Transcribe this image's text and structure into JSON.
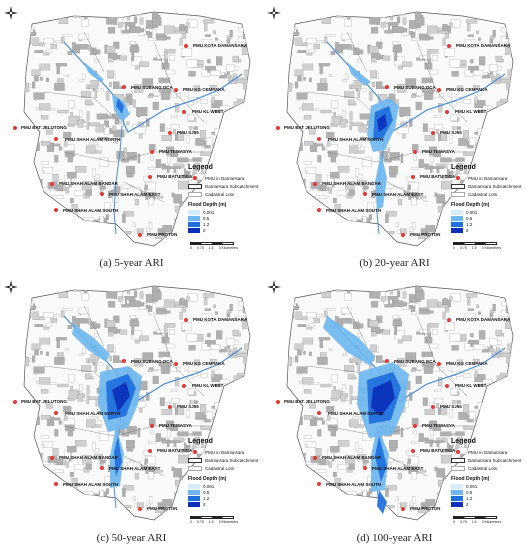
{
  "panels": [
    {
      "caption": "(a) 5-year ARI",
      "flood_extent": "small",
      "legend": {
        "title": "Legend",
        "items": [
          "PMU in Damansara",
          "Damansara Subcatchment",
          "Cadastral Lots"
        ],
        "flood_title": "Flood Depth (m)",
        "flood_classes": [
          "0.001",
          "0.5",
          "1.2",
          "2"
        ]
      },
      "scale": {
        "ticks": [
          "0",
          "0.75",
          "1.5",
          "3 Kilometers"
        ]
      }
    },
    {
      "caption": "(b) 20-year ARI",
      "flood_extent": "medium",
      "legend": {
        "title": "Legend",
        "items": [
          "PMU in Damansara",
          "Damansara Subcatchment",
          "Cadastral Lots"
        ],
        "flood_title": "Flood Depth (m)",
        "flood_classes": [
          "0.001",
          "0.5",
          "1.2",
          "2"
        ]
      },
      "scale": {
        "ticks": [
          "0",
          "0.75",
          "1.5",
          "3 Kilometers"
        ]
      }
    },
    {
      "caption": "(c) 50-year ARI",
      "flood_extent": "large",
      "legend": {
        "title": "Legend",
        "items": [
          "PMU in Damansara",
          "Damansara Subcatchment",
          "Cadastral Lots"
        ],
        "flood_title": "Flood Depth (m)",
        "flood_classes": [
          "0.001",
          "0.5",
          "1.2",
          "2"
        ]
      },
      "scale": {
        "ticks": [
          "0",
          "0.75",
          "1.5",
          "3 Kilometers"
        ]
      }
    },
    {
      "caption": "(d) 100-year ARI",
      "flood_extent": "largest",
      "legend": {
        "title": "Legend",
        "items": [
          "PMU in Damansara",
          "Damansara Subcatchment",
          "Cadastral Lots"
        ],
        "flood_title": "Flood Depth (m)",
        "flood_classes": [
          "0.001",
          "0.5",
          "1.2",
          "2"
        ]
      },
      "scale": {
        "ticks": [
          "0",
          "0.75",
          "1.5",
          "3 Kilometers"
        ]
      }
    }
  ],
  "pmu_labels": [
    "PMU KOTA DAMANSARA",
    "PMU SUBANG DCA",
    "PMU KG CEMPAKA",
    "PMU KL WEST",
    "PMU SJ55",
    "PMU BAT JELUTONG",
    "PMU SHAH ALAM NORTH",
    "PMU TEMASYA",
    "PMU SHAH ALAM BANDAR",
    "PMU BATU TIGA",
    "PMU SHAH ALAM EAST",
    "PMU SHAH ALAM SOUTH",
    "PMU PROTON"
  ],
  "colors": {
    "flood_classes": [
      "#d6ecfa",
      "#6fb7f0",
      "#1f6fdc",
      "#0b2fb8"
    ],
    "pmu_dot": "#e53935",
    "lots": "#9a9a9a",
    "boundary": "#555555"
  }
}
